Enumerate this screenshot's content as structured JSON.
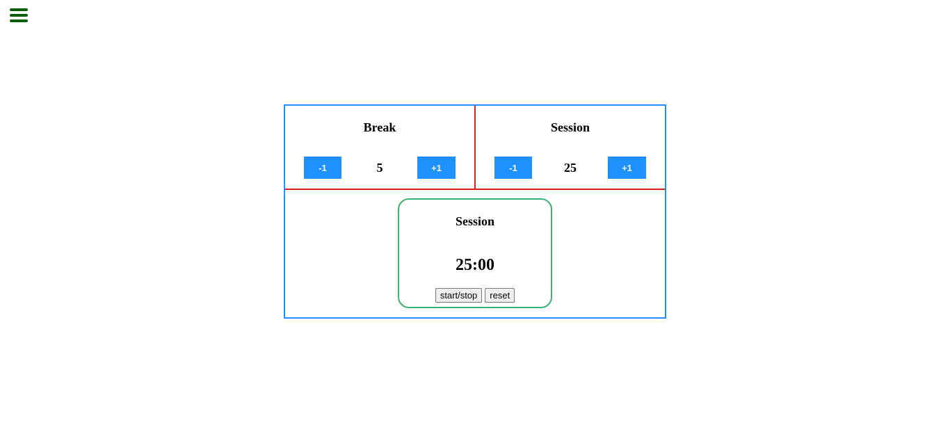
{
  "menu": {
    "icon": "hamburger-menu-icon"
  },
  "break_control": {
    "title": "Break",
    "decrement_label": "-1",
    "increment_label": "+1",
    "value": "5"
  },
  "session_control": {
    "title": "Session",
    "decrement_label": "-1",
    "increment_label": "+1",
    "value": "25"
  },
  "timer": {
    "label": "Session",
    "time": "25:00",
    "start_stop_label": "start/stop",
    "reset_label": "reset"
  },
  "colors": {
    "menu_icon": "#0b5e0b",
    "outer_border": "#1e90ff",
    "divider": "#e01b1b",
    "timer_border": "#3cb371",
    "button_bg": "#1e90ff"
  }
}
